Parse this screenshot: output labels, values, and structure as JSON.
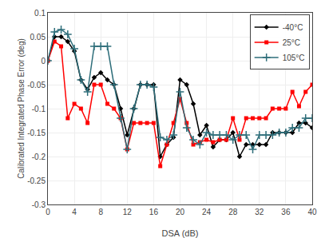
{
  "chart_data": {
    "type": "line",
    "xlabel": "DSA (dB)",
    "ylabel": "Calibrated Integrated Phase Error (deg)",
    "xlim": [
      0,
      40
    ],
    "ylim": [
      -0.3,
      0.1
    ],
    "xticks": [
      0,
      4,
      8,
      12,
      16,
      20,
      24,
      28,
      32,
      36,
      40
    ],
    "yticks": [
      0.1,
      0.05,
      0,
      -0.05,
      -0.1,
      -0.15,
      -0.2,
      -0.25,
      -0.3
    ],
    "x": [
      0,
      1,
      2,
      3,
      4,
      5,
      6,
      7,
      8,
      9,
      10,
      11,
      12,
      13,
      14,
      15,
      16,
      17,
      18,
      19,
      20,
      21,
      22,
      23,
      24,
      25,
      26,
      27,
      28,
      29,
      30,
      31,
      32,
      33,
      34,
      35,
      36,
      37,
      38,
      39,
      40
    ],
    "series": [
      {
        "name": "-40°C",
        "color": "#000000",
        "marker": "diamond",
        "values": [
          0.0,
          0.05,
          0.05,
          0.04,
          0.02,
          -0.04,
          -0.06,
          -0.035,
          -0.025,
          -0.04,
          -0.05,
          -0.1,
          -0.155,
          -0.1,
          -0.05,
          -0.05,
          -0.05,
          -0.2,
          -0.175,
          -0.16,
          -0.04,
          -0.05,
          -0.09,
          -0.155,
          -0.135,
          -0.18,
          -0.165,
          -0.165,
          -0.15,
          -0.2,
          -0.175,
          -0.175,
          -0.175,
          -0.175,
          -0.15,
          -0.15,
          -0.15,
          -0.15,
          -0.13,
          -0.13,
          -0.14
        ]
      },
      {
        "name": "25°C",
        "color": "#ff0000",
        "marker": "square",
        "values": [
          0.0,
          0.04,
          0.03,
          -0.12,
          -0.09,
          -0.1,
          -0.13,
          -0.05,
          -0.05,
          -0.09,
          -0.1,
          -0.12,
          -0.185,
          -0.13,
          -0.13,
          -0.13,
          -0.13,
          -0.22,
          -0.175,
          -0.13,
          -0.08,
          -0.13,
          -0.175,
          -0.17,
          -0.165,
          -0.17,
          -0.165,
          -0.165,
          -0.12,
          -0.165,
          -0.12,
          -0.12,
          -0.12,
          -0.12,
          -0.1,
          -0.1,
          -0.1,
          -0.065,
          -0.095,
          -0.065,
          -0.05
        ]
      },
      {
        "name": "105°C",
        "color": "#2e6e7a",
        "marker": "plus",
        "values": [
          0.0,
          0.06,
          0.065,
          0.055,
          0.025,
          -0.04,
          -0.065,
          0.03,
          0.03,
          0.03,
          -0.05,
          -0.12,
          -0.185,
          -0.1,
          -0.05,
          -0.05,
          -0.055,
          -0.16,
          -0.165,
          -0.155,
          -0.065,
          -0.14,
          -0.165,
          -0.175,
          -0.15,
          -0.155,
          -0.155,
          -0.155,
          -0.165,
          -0.155,
          -0.155,
          -0.185,
          -0.155,
          -0.155,
          -0.155,
          -0.15,
          -0.15,
          -0.14,
          -0.14,
          -0.12,
          -0.12
        ]
      }
    ],
    "grid": true,
    "legend": "upper right"
  }
}
